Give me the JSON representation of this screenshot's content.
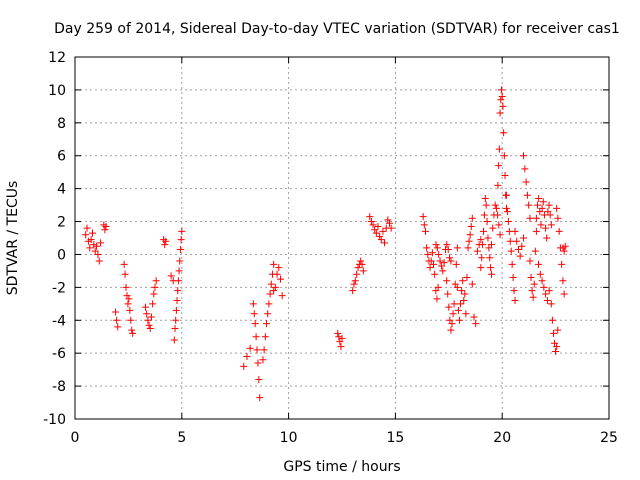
{
  "chart_data": {
    "type": "scatter",
    "title": "Day 259 of 2014, Sidereal Day-to-day VTEC variation (SDTVAR) for receiver cas1",
    "xlabel": "GPS time / hours",
    "ylabel": "SDTVAR / TECUs",
    "xlim": [
      0,
      25
    ],
    "ylim": [
      -10,
      12
    ],
    "xticks": [
      0,
      5,
      10,
      15,
      20,
      25
    ],
    "yticks": [
      -10,
      -8,
      -6,
      -4,
      -2,
      0,
      2,
      4,
      6,
      8,
      10,
      12
    ],
    "grid": true,
    "marker": "+",
    "color": "#ff0000",
    "segments": [
      {
        "x0": 0.5,
        "x1": 1.2,
        "y": [
          1.2,
          1.6,
          0.8,
          0.4,
          0.9,
          1.3,
          0.6,
          0.2,
          0.5,
          0.0,
          -0.4,
          0.7
        ]
      },
      {
        "x0": 1.35,
        "x1": 1.45,
        "y": [
          1.8,
          1.5,
          1.7
        ]
      },
      {
        "x0": 1.9,
        "x1": 2.0,
        "y": [
          -3.5,
          -4.0,
          -4.4
        ]
      },
      {
        "x0": 2.3,
        "x1": 2.7,
        "y": [
          -0.6,
          -1.2,
          -2.0,
          -2.5,
          -3.0,
          -2.7,
          -3.4,
          -4.0,
          -4.6,
          -4.8
        ]
      },
      {
        "x0": 3.3,
        "x1": 3.8,
        "y": [
          -3.2,
          -3.6,
          -4.0,
          -4.3,
          -4.5,
          -3.8,
          -3.0,
          -2.4,
          -2.0,
          -1.6
        ]
      },
      {
        "x0": 4.15,
        "x1": 4.25,
        "y": [
          0.9,
          0.6,
          0.8
        ]
      },
      {
        "x0": 4.5,
        "x1": 4.6,
        "y": [
          -1.3,
          -1.6
        ]
      },
      {
        "x0": 4.65,
        "x1": 5.0,
        "y": [
          -5.2,
          -4.5,
          -4.0,
          -3.4,
          -2.8,
          -2.2,
          -1.6,
          -1.0,
          -0.4,
          0.3,
          0.9,
          1.4
        ]
      },
      {
        "x0": 7.9,
        "x1": 8.2,
        "y": [
          -6.8,
          -6.2,
          -5.7
        ]
      },
      {
        "x0": 8.35,
        "x1": 8.65,
        "y": [
          -3.0,
          -3.6,
          -4.2,
          -5.0,
          -5.8,
          -6.6,
          -7.6,
          -8.7
        ]
      },
      {
        "x0": 8.8,
        "x1": 9.3,
        "y": [
          -6.4,
          -5.8,
          -5.0,
          -4.2,
          -3.6,
          -3.0,
          -2.4,
          -1.8,
          -1.2,
          -0.6
        ]
      },
      {
        "x0": 9.3,
        "x1": 9.7,
        "y": [
          -2.2,
          -2.0,
          -1.2,
          -0.8,
          -1.5,
          -2.5
        ]
      },
      {
        "x0": 12.3,
        "x1": 12.5,
        "y": [
          -4.8,
          -5.0,
          -5.3,
          -5.6,
          -5.1
        ]
      },
      {
        "x0": 13.0,
        "x1": 13.5,
        "y": [
          -2.2,
          -1.8,
          -1.6,
          -1.2,
          -0.8,
          -0.6,
          -0.4,
          -0.6,
          -1.0
        ]
      },
      {
        "x0": 13.8,
        "x1": 14.8,
        "y": [
          2.3,
          2.0,
          1.8,
          1.5,
          1.3,
          1.7,
          1.1,
          0.9,
          1.4,
          0.7,
          1.6,
          2.1,
          1.9,
          1.6
        ]
      },
      {
        "x0": 16.3,
        "x1": 17.0,
        "y": [
          2.3,
          1.8,
          1.4,
          0.4,
          0.0,
          -0.4,
          -0.8,
          -0.4,
          0.1,
          -0.6,
          -1.2,
          -2.2,
          -2.7,
          -2.0
        ]
      },
      {
        "x0": 16.9,
        "x1": 17.6,
        "y": [
          0.6,
          0.4,
          0.0,
          -0.4,
          -0.7,
          -1.0,
          -0.5,
          0.3,
          0.6,
          0.3,
          -0.2,
          -0.4
        ]
      },
      {
        "x0": 17.4,
        "x1": 17.9,
        "y": [
          -1.6,
          -2.4,
          -3.2,
          -4.0,
          -4.6,
          -4.2,
          -3.6,
          -3.0,
          -1.8,
          -0.6,
          0.4
        ]
      },
      {
        "x0": 17.9,
        "x1": 18.6,
        "y": [
          -2.0,
          -3.4,
          -4.0,
          -3.0,
          -2.2,
          -1.6,
          -2.8,
          -2.4,
          -3.6,
          -1.4,
          0.4,
          0.8,
          1.2,
          1.7,
          2.2
        ]
      },
      {
        "x0": 18.6,
        "x1": 19.0,
        "y": [
          -1.8,
          -3.8,
          -4.2,
          0.2,
          0.6,
          0.9
        ]
      },
      {
        "x0": 19.0,
        "x1": 19.5,
        "y": [
          -0.8,
          -0.2,
          0.6,
          1.4,
          2.4,
          3.4,
          3.0,
          2.0,
          1.0,
          0.4,
          -0.2,
          -0.8,
          -1.2
        ]
      },
      {
        "x0": 19.5,
        "x1": 19.9,
        "y": [
          0.6,
          1.6,
          2.4,
          3.0,
          2.8,
          2.4,
          1.8,
          1.2
        ]
      },
      {
        "x0": 19.8,
        "x1": 20.2,
        "y": [
          4.2,
          5.4,
          6.4,
          8.6,
          9.4,
          10.0,
          9.6,
          9.0,
          7.4,
          6.0,
          4.8,
          3.6,
          2.8
        ]
      },
      {
        "x0": 20.2,
        "x1": 20.6,
        "y": [
          3.6,
          2.6,
          2.0,
          1.4,
          0.8,
          0.2,
          -0.6,
          -1.4,
          -2.2,
          -2.8
        ]
      },
      {
        "x0": 20.6,
        "x1": 21.0,
        "y": [
          1.4,
          0.8,
          0.3,
          -0.1,
          0.5,
          1.0
        ]
      },
      {
        "x0": 21.0,
        "x1": 21.3,
        "y": [
          6.0,
          5.2,
          4.4,
          3.6,
          3.0,
          2.2
        ]
      },
      {
        "x0": 21.3,
        "x1": 21.6,
        "y": [
          -0.4,
          -1.4,
          -2.2,
          -2.6,
          -1.8,
          0.2,
          1.4
        ]
      },
      {
        "x0": 21.6,
        "x1": 22.3,
        "y": [
          2.2,
          3.0,
          3.4,
          2.6,
          1.8,
          2.8,
          3.2,
          2.4,
          1.6,
          1.0,
          2.6,
          3.0,
          2.4,
          1.8
        ]
      },
      {
        "x0": 21.7,
        "x1": 22.2,
        "y": [
          -0.6,
          -1.2,
          -1.6,
          -2.0,
          -2.4,
          -2.8,
          -2.2
        ]
      },
      {
        "x0": 22.3,
        "x1": 22.6,
        "y": [
          -3.0,
          -4.0,
          -4.8,
          -5.4,
          -5.9,
          -5.6,
          -4.6
        ]
      },
      {
        "x0": 22.55,
        "x1": 22.9,
        "y": [
          2.8,
          2.2,
          1.4,
          0.4,
          -0.6,
          -1.6,
          -2.4
        ]
      },
      {
        "x0": 22.85,
        "x1": 22.95,
        "y": [
          0.4,
          0.2,
          0.5
        ]
      }
    ]
  }
}
